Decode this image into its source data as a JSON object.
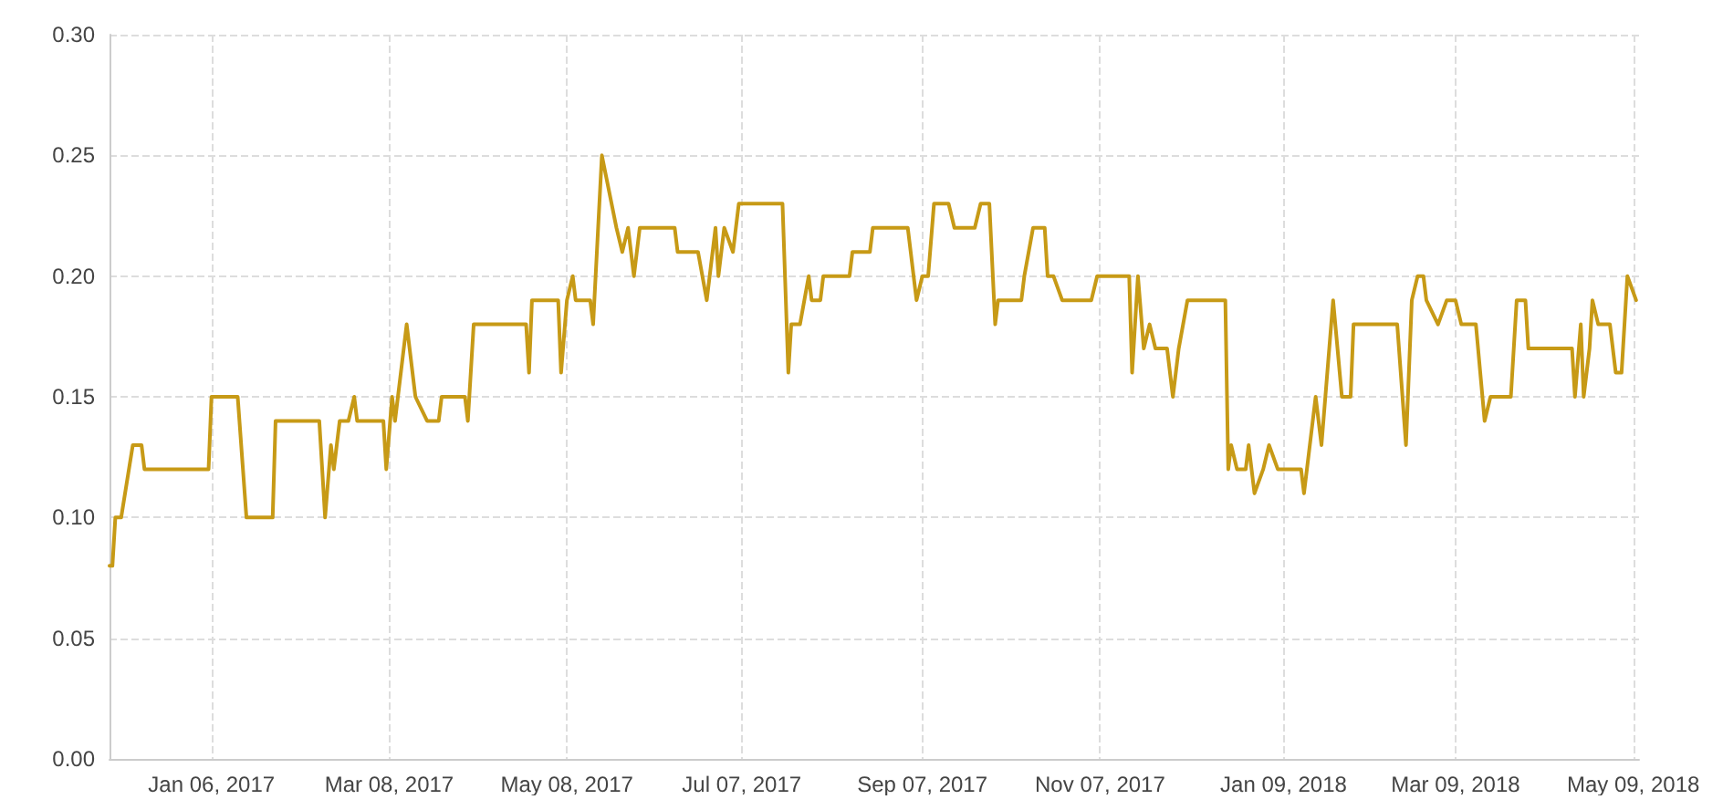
{
  "chart_data": {
    "type": "line",
    "x": [
      "2016-12-02",
      "2016-12-03",
      "2016-12-04",
      "2016-12-06",
      "2016-12-10",
      "2016-12-13",
      "2016-12-14",
      "2017-01-05",
      "2017-01-06",
      "2017-01-15",
      "2017-01-18",
      "2017-01-27",
      "2017-01-28",
      "2017-02-12",
      "2017-02-14",
      "2017-02-16",
      "2017-02-17",
      "2017-02-19",
      "2017-02-22",
      "2017-02-24",
      "2017-02-25",
      "2017-03-06",
      "2017-03-07",
      "2017-03-09",
      "2017-03-10",
      "2017-03-14",
      "2017-03-17",
      "2017-03-21",
      "2017-03-25",
      "2017-03-26",
      "2017-04-03",
      "2017-04-04",
      "2017-04-06",
      "2017-04-24",
      "2017-04-25",
      "2017-04-26",
      "2017-05-05",
      "2017-05-06",
      "2017-05-08",
      "2017-05-10",
      "2017-05-11",
      "2017-05-16",
      "2017-05-17",
      "2017-05-20",
      "2017-05-25",
      "2017-05-27",
      "2017-05-29",
      "2017-05-31",
      "2017-06-02",
      "2017-06-14",
      "2017-06-15",
      "2017-06-22",
      "2017-06-25",
      "2017-06-28",
      "2017-06-29",
      "2017-07-01",
      "2017-07-04",
      "2017-07-06",
      "2017-07-21",
      "2017-07-23",
      "2017-07-24",
      "2017-07-27",
      "2017-07-30",
      "2017-07-31",
      "2017-08-03",
      "2017-08-04",
      "2017-08-13",
      "2017-08-14",
      "2017-08-20",
      "2017-08-21",
      "2017-09-02",
      "2017-09-05",
      "2017-09-07",
      "2017-09-09",
      "2017-09-11",
      "2017-09-16",
      "2017-09-18",
      "2017-09-25",
      "2017-09-27",
      "2017-09-30",
      "2017-10-02",
      "2017-10-03",
      "2017-10-11",
      "2017-10-12",
      "2017-10-15",
      "2017-10-19",
      "2017-10-20",
      "2017-10-22",
      "2017-10-25",
      "2017-11-04",
      "2017-11-06",
      "2017-11-17",
      "2017-11-18",
      "2017-11-20",
      "2017-11-22",
      "2017-11-24",
      "2017-11-26",
      "2017-11-30",
      "2017-12-02",
      "2017-12-04",
      "2017-12-07",
      "2017-12-20",
      "2017-12-21",
      "2017-12-22",
      "2017-12-24",
      "2017-12-27",
      "2017-12-28",
      "2017-12-30",
      "2018-01-02",
      "2018-01-04",
      "2018-01-07",
      "2018-01-15",
      "2018-01-16",
      "2018-01-20",
      "2018-01-22",
      "2018-01-26",
      "2018-01-29",
      "2018-02-01",
      "2018-02-02",
      "2018-02-17",
      "2018-02-20",
      "2018-02-22",
      "2018-02-24",
      "2018-02-26",
      "2018-02-27",
      "2018-03-03",
      "2018-03-06",
      "2018-03-09",
      "2018-03-11",
      "2018-03-16",
      "2018-03-19",
      "2018-03-21",
      "2018-03-28",
      "2018-03-30",
      "2018-04-02",
      "2018-04-03",
      "2018-04-18",
      "2018-04-19",
      "2018-04-21",
      "2018-04-22",
      "2018-04-24",
      "2018-04-25",
      "2018-04-27",
      "2018-05-01",
      "2018-05-03",
      "2018-05-05",
      "2018-05-07",
      "2018-05-10"
    ],
    "series": [
      {
        "color": "#c79a16",
        "values": [
          0.08,
          0.08,
          0.1,
          0.1,
          0.13,
          0.13,
          0.12,
          0.12,
          0.15,
          0.15,
          0.1,
          0.1,
          0.14,
          0.14,
          0.1,
          0.13,
          0.12,
          0.14,
          0.14,
          0.15,
          0.14,
          0.14,
          0.12,
          0.15,
          0.14,
          0.18,
          0.15,
          0.14,
          0.14,
          0.15,
          0.15,
          0.14,
          0.18,
          0.18,
          0.16,
          0.19,
          0.19,
          0.16,
          0.19,
          0.2,
          0.19,
          0.19,
          0.18,
          0.25,
          0.22,
          0.21,
          0.22,
          0.2,
          0.22,
          0.22,
          0.21,
          0.21,
          0.19,
          0.22,
          0.2,
          0.22,
          0.21,
          0.23,
          0.23,
          0.16,
          0.18,
          0.18,
          0.2,
          0.19,
          0.19,
          0.2,
          0.2,
          0.21,
          0.21,
          0.22,
          0.22,
          0.19,
          0.2,
          0.2,
          0.23,
          0.23,
          0.22,
          0.22,
          0.23,
          0.23,
          0.18,
          0.19,
          0.19,
          0.2,
          0.22,
          0.22,
          0.2,
          0.2,
          0.19,
          0.19,
          0.2,
          0.2,
          0.16,
          0.2,
          0.17,
          0.18,
          0.17,
          0.17,
          0.15,
          0.17,
          0.19,
          0.19,
          0.12,
          0.13,
          0.12,
          0.12,
          0.13,
          0.11,
          0.12,
          0.13,
          0.12,
          0.12,
          0.11,
          0.15,
          0.13,
          0.19,
          0.15,
          0.15,
          0.18,
          0.18,
          0.13,
          0.19,
          0.2,
          0.2,
          0.19,
          0.18,
          0.19,
          0.19,
          0.18,
          0.18,
          0.14,
          0.15,
          0.15,
          0.19,
          0.19,
          0.17,
          0.17,
          0.15,
          0.18,
          0.15,
          0.17,
          0.19,
          0.18,
          0.18,
          0.16,
          0.16,
          0.2,
          0.19
        ]
      }
    ],
    "xlim": [
      "2016-12-02",
      "2018-05-11"
    ],
    "xticks": [
      {
        "value": "2017-01-06",
        "label": "Jan 06, 2017"
      },
      {
        "value": "2017-03-08",
        "label": "Mar 08, 2017"
      },
      {
        "value": "2017-05-08",
        "label": "May 08, 2017"
      },
      {
        "value": "2017-07-07",
        "label": "Jul 07, 2017"
      },
      {
        "value": "2017-09-07",
        "label": "Sep 07, 2017"
      },
      {
        "value": "2017-11-07",
        "label": "Nov 07, 2017"
      },
      {
        "value": "2018-01-09",
        "label": "Jan 09, 2018"
      },
      {
        "value": "2018-03-09",
        "label": "Mar 09, 2018"
      },
      {
        "value": "2018-05-09",
        "label": "May 09, 2018"
      }
    ],
    "ylim": [
      0,
      0.3
    ],
    "yticks": [
      {
        "value": 0,
        "label": "0.00"
      },
      {
        "value": 0.05,
        "label": "0.05"
      },
      {
        "value": 0.1,
        "label": "0.10"
      },
      {
        "value": 0.15,
        "label": "0.15"
      },
      {
        "value": 0.2,
        "label": "0.20"
      },
      {
        "value": 0.25,
        "label": "0.25"
      },
      {
        "value": 0.3,
        "label": "0.30"
      }
    ],
    "grid": true,
    "marker": "none",
    "line_style": "solid"
  }
}
